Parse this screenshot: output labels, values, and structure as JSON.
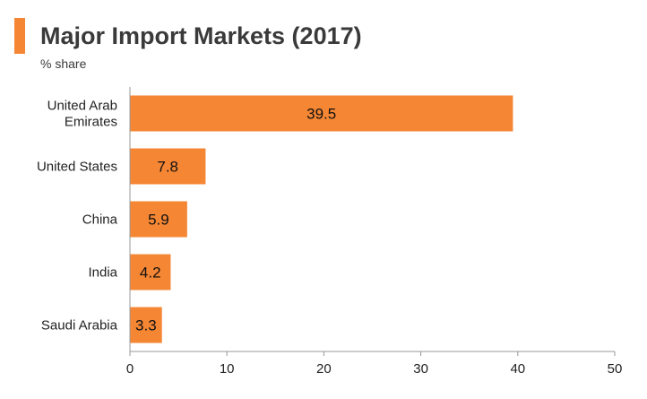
{
  "header": {
    "title": "Major Import Markets (2017)",
    "subtitle": "% share",
    "accent_color": "#f58634"
  },
  "chart_data": {
    "type": "bar",
    "orientation": "horizontal",
    "categories": [
      [
        "United Arab",
        "Emirates"
      ],
      [
        "United States"
      ],
      [
        "China"
      ],
      [
        "India"
      ],
      [
        "Saudi Arabia"
      ]
    ],
    "values": [
      39.5,
      7.8,
      5.9,
      4.2,
      3.3
    ],
    "value_labels": [
      "39.5",
      "7.8",
      "5.9",
      "4.2",
      "3.3"
    ],
    "xlim": [
      0,
      50
    ],
    "xticks": [
      0,
      10,
      20,
      30,
      40,
      50
    ],
    "grid": false,
    "bar_color": "#f58634",
    "axis_color": "#999999"
  }
}
